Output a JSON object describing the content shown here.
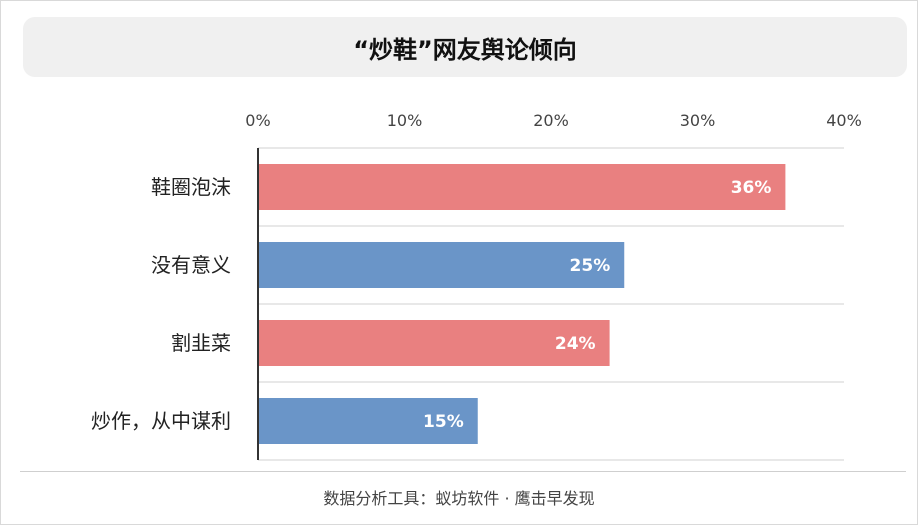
{
  "title": "“炒鞋”网友舆论倾向",
  "source": "数据分析工具：蚁坊软件 · 鹰击早发现",
  "colors": {
    "pink": "#e98080",
    "blue": "#6a95c8",
    "axis": "#333333",
    "grid": "#d0d0d0",
    "tick_text": "#444444",
    "label_text": "#222222",
    "value_text": "#ffffff"
  },
  "chart_data": {
    "type": "bar",
    "orientation": "horizontal",
    "categories": [
      "鞋圈泡沫",
      "没有意义",
      "割韭菜",
      "炒作，从中谋利"
    ],
    "values": [
      36,
      25,
      24,
      15
    ],
    "value_labels": [
      "36%",
      "25%",
      "24%",
      "15%"
    ],
    "bar_colors": [
      "#e98080",
      "#6a95c8",
      "#e98080",
      "#6a95c8"
    ],
    "x_ticks": [
      "0%",
      "10%",
      "20%",
      "30%",
      "40%"
    ],
    "xlim": [
      0,
      40
    ],
    "x_axis_position": "top",
    "grid": true
  }
}
